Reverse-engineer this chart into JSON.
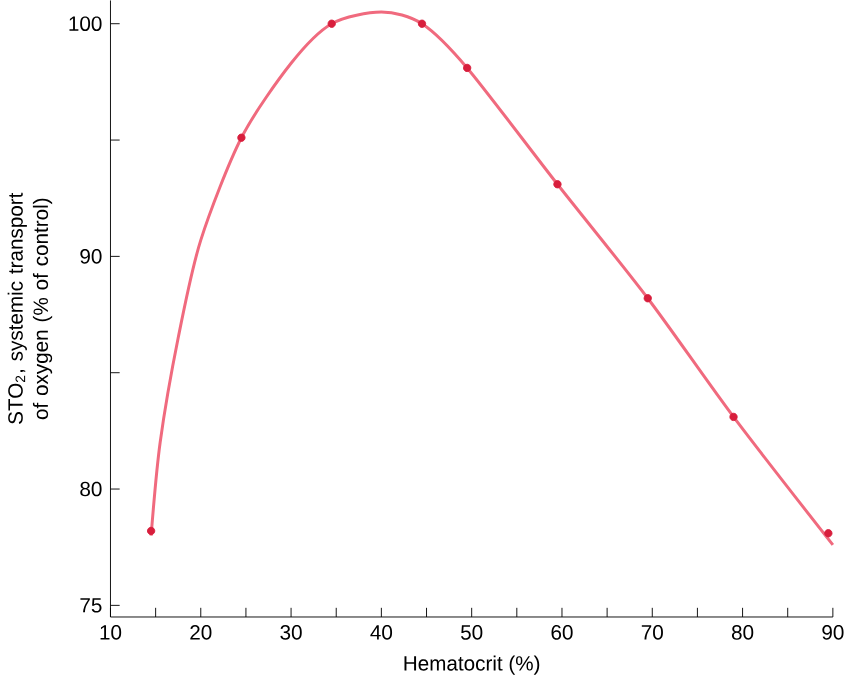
{
  "chart_data": {
    "type": "scatter",
    "xlabel": "Hematocrit (%)",
    "ylabel": "STO$_{2}$, systemic transport of oxygen (% of control)",
    "xlim": [
      10,
      90
    ],
    "ylim": [
      74.5,
      101
    ],
    "xticks": [
      10,
      {
        "value": 15,
        "label": null
      },
      20,
      {
        "value": 25,
        "label": null
      },
      30,
      {
        "value": 35,
        "label": null
      },
      40,
      {
        "value": 45,
        "label": null
      },
      50,
      {
        "value": 55,
        "label": null
      },
      60,
      {
        "value": 65,
        "label": null
      },
      70,
      {
        "value": 75,
        "label": null
      },
      80,
      {
        "value": 85,
        "label": null
      },
      90
    ],
    "yticks": [
      75,
      80,
      {
        "value": 85,
        "label": null
      },
      90,
      {
        "value": 95,
        "label": null
      },
      100
    ],
    "grid": false,
    "marker": "circle",
    "series": [
      {
        "type": "line",
        "color": "#f06a7e",
        "line_style": "solid",
        "marker": "none",
        "x": [
          14.5,
          15.5,
          17.5,
          20,
          24.5,
          30,
          34.5,
          40,
          44.5,
          49.5,
          59.5,
          69.5,
          79,
          90
        ],
        "values": [
          78,
          82,
          86.5,
          90.7,
          95.1,
          98.3,
          100,
          100.5,
          100,
          98.1,
          93.1,
          88.2,
          83.1,
          77.6
        ]
      },
      {
        "color": "#d81e3c",
        "x": [
          14.5,
          24.5,
          34.5,
          44.5,
          49.5,
          59.5,
          69.5,
          79,
          89.5
        ],
        "values": [
          78.2,
          95.1,
          100,
          100,
          98.1,
          93.1,
          88.2,
          83.1,
          78.1
        ]
      }
    ]
  }
}
